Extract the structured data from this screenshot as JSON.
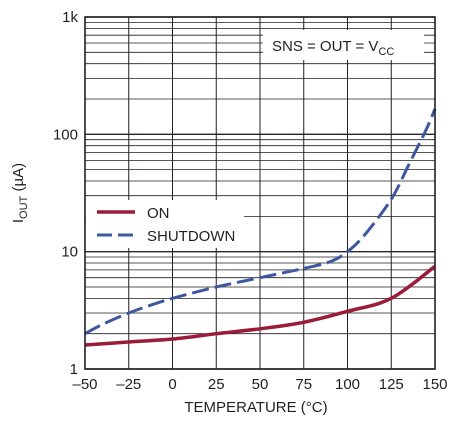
{
  "chart_data": {
    "type": "line",
    "xlabel": "TEMPERATURE (°C)",
    "ylabel": {
      "main": "I",
      "sub": "OUT",
      "unit": " (µA)"
    },
    "x_ticks": [
      "–50",
      "–25",
      "0",
      "25",
      "50",
      "75",
      "100",
      "125",
      "150"
    ],
    "y_ticks": [
      "1",
      "10",
      "100",
      "1k"
    ],
    "xlim": [
      -50,
      150
    ],
    "ylim": [
      1,
      1000
    ],
    "y_scale": "log",
    "grid": true,
    "annotation": {
      "main": "SNS = OUT = V",
      "sub": "CC"
    },
    "legend_position": "left",
    "series": [
      {
        "name": "ON",
        "color": "#9b1b3a",
        "style": "solid",
        "x": [
          -50,
          -25,
          0,
          25,
          50,
          75,
          100,
          125,
          150
        ],
        "y": [
          1.6,
          1.7,
          1.8,
          2.0,
          2.2,
          2.5,
          3.1,
          4.0,
          7.5
        ]
      },
      {
        "name": "SHUTDOWN",
        "color": "#3d57a0",
        "style": "dashed",
        "x": [
          -50,
          -40,
          -25,
          -10,
          0,
          25,
          50,
          75,
          90,
          100,
          110,
          125,
          135,
          145,
          150
        ],
        "y": [
          2.0,
          2.4,
          3.0,
          3.6,
          4.0,
          5.0,
          6.0,
          7.2,
          8.2,
          10,
          14,
          28,
          55,
          110,
          165
        ]
      }
    ]
  }
}
